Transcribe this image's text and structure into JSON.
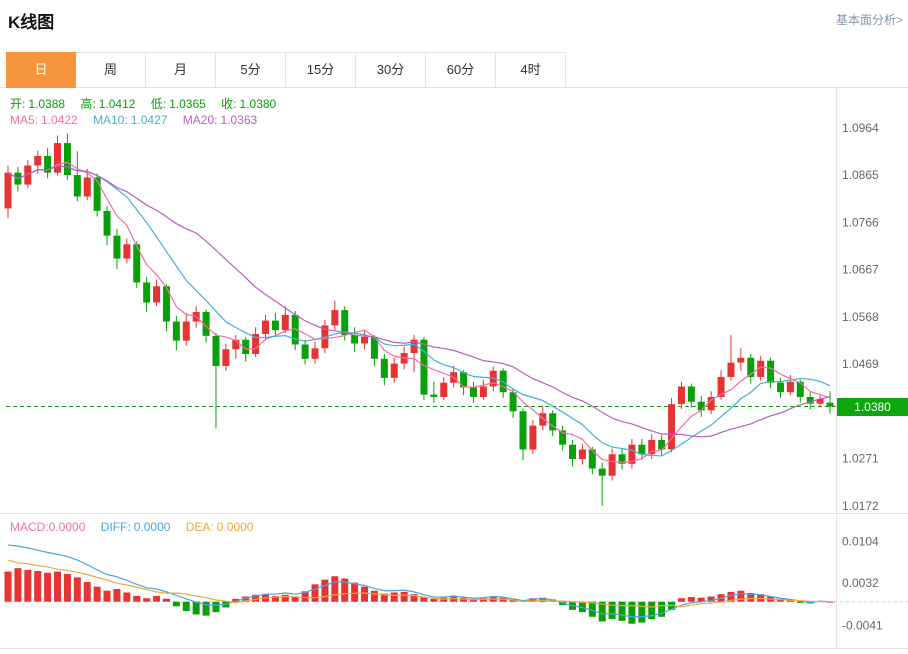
{
  "header": {
    "title": "K线图",
    "link": "基本面分析>"
  },
  "tabs": {
    "items": [
      {
        "label": "日",
        "active": true
      },
      {
        "label": "周",
        "active": false
      },
      {
        "label": "月",
        "active": false
      },
      {
        "label": "5分",
        "active": false
      },
      {
        "label": "15分",
        "active": false
      },
      {
        "label": "30分",
        "active": false
      },
      {
        "label": "60分",
        "active": false
      },
      {
        "label": "4时",
        "active": false
      }
    ]
  },
  "price_panel": {
    "ohlc_legend": {
      "open_label": "开:",
      "open": "1.0388",
      "high_label": "高:",
      "high": "1.0412",
      "low_label": "低:",
      "low": "1.0365",
      "close_label": "收:",
      "close": "1.0380"
    },
    "ma_legend": {
      "ma5_label": "MA5:",
      "ma5": "1.0422",
      "ma10_label": "MA10:",
      "ma10": "1.0427",
      "ma20_label": "MA20:",
      "ma20": "1.0363"
    },
    "current_price": "1.0380"
  },
  "macd_panel": {
    "legend": {
      "macd_label": "MACD:",
      "macd": "0.0000",
      "diff_label": "DIFF:",
      "diff": "0.0000",
      "dea_label": "DEA:",
      "dea": "0.0000"
    }
  },
  "colors": {
    "accent": "#f7943e",
    "up": "#e83333",
    "down": "#0aa00a",
    "ma5": "#f36fa0",
    "ma10": "#41b1d5",
    "ma20": "#b95fc0",
    "diff_line": "#4aa4dd",
    "dea_line": "#f0a73a",
    "badge": "#0ea50e",
    "border": "#e4e4e4",
    "tick_text": "#666666",
    "link": "#8496ab"
  },
  "chart_data": [
    {
      "type": "candlestick",
      "y_axis": {
        "min": 1.0159,
        "max": 1.1039,
        "ticks": [
          1.0964,
          1.0865,
          1.0766,
          1.0667,
          1.0568,
          1.0469,
          1.0271,
          1.0172
        ]
      },
      "current_price": 1.038,
      "last_ohlc": {
        "open": 1.0388,
        "high": 1.0412,
        "low": 1.0365,
        "close": 1.038
      },
      "overlays": [
        {
          "name": "MA5",
          "period": 5,
          "value": 1.0422,
          "color": "#f36fa0"
        },
        {
          "name": "MA10",
          "period": 10,
          "value": 1.0427,
          "color": "#41b1d5"
        },
        {
          "name": "MA20",
          "period": 20,
          "value": 1.0363,
          "color": "#b95fc0"
        }
      ],
      "ohlc": [
        [
          1.0795,
          1.0885,
          1.0775,
          1.087
        ],
        [
          1.087,
          1.0882,
          1.083,
          1.0845
        ],
        [
          1.0845,
          1.0896,
          1.0838,
          1.0885
        ],
        [
          1.0885,
          1.0916,
          1.0868,
          1.0905
        ],
        [
          1.0905,
          1.0922,
          1.0858,
          1.087
        ],
        [
          1.087,
          1.0948,
          1.0864,
          1.0932
        ],
        [
          1.0932,
          1.0952,
          1.0855,
          1.0865
        ],
        [
          1.0865,
          1.0915,
          1.081,
          1.082
        ],
        [
          1.082,
          1.0878,
          1.0812,
          1.086
        ],
        [
          1.086,
          1.0868,
          1.0778,
          1.079
        ],
        [
          1.079,
          1.08,
          1.0718,
          1.0738
        ],
        [
          1.0738,
          1.0752,
          1.0668,
          1.069
        ],
        [
          1.069,
          1.0732,
          1.068,
          1.072
        ],
        [
          1.072,
          1.0726,
          1.0628,
          1.064
        ],
        [
          1.064,
          1.0652,
          1.0578,
          1.0598
        ],
        [
          1.0598,
          1.0646,
          1.059,
          1.0632
        ],
        [
          1.0632,
          1.0636,
          1.0538,
          1.0558
        ],
        [
          1.0558,
          1.057,
          1.0498,
          1.0518
        ],
        [
          1.0518,
          1.0576,
          1.0508,
          1.0558
        ],
        [
          1.0558,
          1.059,
          1.0545,
          1.0578
        ],
        [
          1.0578,
          1.0584,
          1.0514,
          1.0528
        ],
        [
          1.0528,
          1.0534,
          1.0334,
          1.0465
        ],
        [
          1.0465,
          1.0512,
          1.0455,
          1.05
        ],
        [
          1.05,
          1.053,
          1.048,
          1.052
        ],
        [
          1.052,
          1.0526,
          1.0474,
          1.049
        ],
        [
          1.049,
          1.0546,
          1.0484,
          1.0532
        ],
        [
          1.0532,
          1.0572,
          1.052,
          1.056
        ],
        [
          1.056,
          1.0576,
          1.0528,
          1.054
        ],
        [
          1.054,
          1.059,
          1.0534,
          1.0572
        ],
        [
          1.0572,
          1.058,
          1.0498,
          1.051
        ],
        [
          1.051,
          1.052,
          1.0468,
          1.048
        ],
        [
          1.048,
          1.0516,
          1.047,
          1.0502
        ],
        [
          1.0502,
          1.0562,
          1.0492,
          1.055
        ],
        [
          1.055,
          1.0602,
          1.054,
          1.0582
        ],
        [
          1.0582,
          1.059,
          1.0518,
          1.053
        ],
        [
          1.053,
          1.0546,
          1.0494,
          1.0512
        ],
        [
          1.0512,
          1.054,
          1.05,
          1.0526
        ],
        [
          1.0526,
          1.053,
          1.0464,
          1.048
        ],
        [
          1.048,
          1.049,
          1.0424,
          1.044
        ],
        [
          1.044,
          1.0482,
          1.043,
          1.047
        ],
        [
          1.047,
          1.0506,
          1.0458,
          1.0492
        ],
        [
          1.0492,
          1.053,
          1.0452,
          1.052
        ],
        [
          1.052,
          1.0526,
          1.0394,
          1.0405
        ],
        [
          1.0405,
          1.0432,
          1.0388,
          1.04
        ],
        [
          1.04,
          1.0442,
          1.0394,
          1.043
        ],
        [
          1.043,
          1.0466,
          1.042,
          1.0452
        ],
        [
          1.0452,
          1.0456,
          1.0404,
          1.042
        ],
        [
          1.042,
          1.0432,
          1.0388,
          1.04
        ],
        [
          1.04,
          1.0436,
          1.0394,
          1.0422
        ],
        [
          1.0422,
          1.0464,
          1.0412,
          1.0455
        ],
        [
          1.0455,
          1.046,
          1.0398,
          1.041
        ],
        [
          1.041,
          1.0418,
          1.0356,
          1.037
        ],
        [
          1.037,
          1.0376,
          1.0268,
          1.029
        ],
        [
          1.029,
          1.0352,
          1.028,
          1.034
        ],
        [
          1.034,
          1.0382,
          1.033,
          1.0366
        ],
        [
          1.0366,
          1.0372,
          1.0318,
          1.033
        ],
        [
          1.033,
          1.034,
          1.0288,
          1.03
        ],
        [
          1.03,
          1.031,
          1.0254,
          1.027
        ],
        [
          1.027,
          1.0302,
          1.0258,
          1.029
        ],
        [
          1.029,
          1.0296,
          1.0238,
          1.025
        ],
        [
          1.025,
          1.0262,
          1.0172,
          1.0235
        ],
        [
          1.0235,
          1.0292,
          1.0225,
          1.028
        ],
        [
          1.028,
          1.0292,
          1.0248,
          1.026
        ],
        [
          1.026,
          1.0312,
          1.025,
          1.03
        ],
        [
          1.03,
          1.0312,
          1.0268,
          1.028
        ],
        [
          1.028,
          1.0322,
          1.027,
          1.031
        ],
        [
          1.031,
          1.032,
          1.0278,
          1.029
        ],
        [
          1.029,
          1.0398,
          1.0284,
          1.0385
        ],
        [
          1.0385,
          1.0432,
          1.0375,
          1.0422
        ],
        [
          1.0422,
          1.0428,
          1.0378,
          1.039
        ],
        [
          1.039,
          1.0402,
          1.0358,
          1.0372
        ],
        [
          1.0372,
          1.0412,
          1.0364,
          1.04
        ],
        [
          1.04,
          1.0456,
          1.0394,
          1.0442
        ],
        [
          1.0442,
          1.053,
          1.0434,
          1.0472
        ],
        [
          1.0472,
          1.0502,
          1.0455,
          1.0482
        ],
        [
          1.0482,
          1.049,
          1.0428,
          1.0442
        ],
        [
          1.0442,
          1.0486,
          1.0434,
          1.0476
        ],
        [
          1.0476,
          1.0482,
          1.0418,
          1.043
        ],
        [
          1.043,
          1.044,
          1.0398,
          1.041
        ],
        [
          1.041,
          1.0446,
          1.0404,
          1.0432
        ],
        [
          1.0432,
          1.0436,
          1.0388,
          1.04
        ],
        [
          1.04,
          1.0412,
          1.0374,
          1.0386
        ],
        [
          1.0386,
          1.0406,
          1.0378,
          1.0396
        ],
        [
          1.0388,
          1.0412,
          1.0365,
          1.038
        ]
      ]
    },
    {
      "type": "bar",
      "name": "MACD",
      "y_axis": {
        "min": -0.0073,
        "max": 0.0148,
        "ticks": [
          0.0104,
          0.0032,
          -0.0041
        ]
      },
      "diff": [
        0.0098,
        0.0096,
        0.0093,
        0.0089,
        0.0085,
        0.0082,
        0.0078,
        0.0072,
        0.0064,
        0.0055,
        0.0047,
        0.0043,
        0.0037,
        0.003,
        0.0024,
        0.0022,
        0.0017,
        0.0011,
        0.0005,
        -0.0001,
        -0.0005,
        -0.0006,
        -0.0004,
        0.0001,
        0.0006,
        0.001,
        0.0013,
        0.0013,
        0.0015,
        0.0013,
        0.0016,
        0.0022,
        0.0028,
        0.0034,
        0.0034,
        0.0031,
        0.0028,
        0.0023,
        0.0019,
        0.0019,
        0.002,
        0.0017,
        0.0012,
        0.0008,
        0.0008,
        0.001,
        0.0008,
        0.0006,
        0.0007,
        0.0009,
        0.0008,
        0.0005,
        0.0002,
        0.0004,
        0.0006,
        0.0003,
        -0.0002,
        -0.0007,
        -0.001,
        -0.0015,
        -0.0021,
        -0.0021,
        -0.0023,
        -0.0026,
        -0.0026,
        -0.0024,
        -0.002,
        -0.0013,
        -0.0006,
        -0.0002,
        0.0,
        0.0002,
        0.0006,
        0.0011,
        0.0014,
        0.0013,
        0.0012,
        0.0009,
        0.0006,
        0.0004,
        0.0001,
        -0.0001,
        0.0001,
        0.0
      ],
      "hist": [
        0.0052,
        0.0058,
        0.0055,
        0.0053,
        0.005,
        0.0052,
        0.0048,
        0.0042,
        0.0034,
        0.0026,
        0.0019,
        0.0022,
        0.0016,
        0.001,
        0.0006,
        0.001,
        0.0005,
        -0.0008,
        -0.0016,
        -0.0022,
        -0.0024,
        -0.0018,
        -0.001,
        0.0005,
        0.0009,
        0.0012,
        0.0013,
        0.001,
        0.0012,
        0.0009,
        0.0018,
        0.003,
        0.0038,
        0.0044,
        0.004,
        0.0033,
        0.0026,
        0.0019,
        0.0014,
        0.0016,
        0.0017,
        0.0013,
        0.0008,
        0.0005,
        0.0007,
        0.0009,
        0.0007,
        0.0005,
        0.0006,
        0.0009,
        0.0007,
        0.0004,
        0.0003,
        0.0006,
        0.0007,
        0.0004,
        -0.0006,
        -0.0014,
        -0.0018,
        -0.0026,
        -0.0034,
        -0.003,
        -0.0033,
        -0.0038,
        -0.0036,
        -0.003,
        -0.0026,
        -0.0014,
        0.0006,
        0.0008,
        0.0007,
        0.0009,
        0.0013,
        0.0017,
        0.0019,
        0.0015,
        0.0013,
        0.0009,
        0.0005,
        0.0003,
        -0.0002,
        -0.0003,
        0.0001,
        0.0
      ]
    }
  ]
}
